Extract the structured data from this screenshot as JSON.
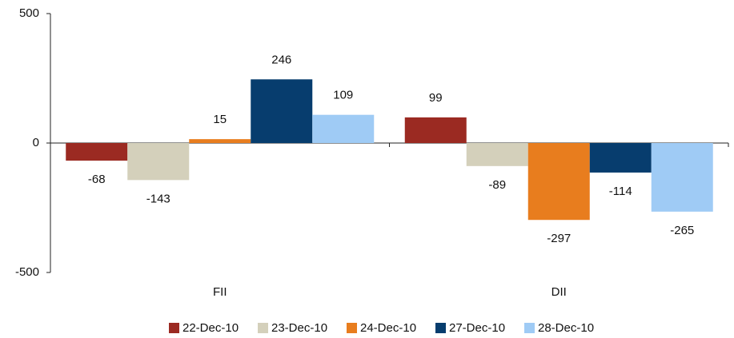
{
  "chart_data": {
    "type": "bar",
    "categories": [
      "FII",
      "DII"
    ],
    "series": [
      {
        "name": "22-Dec-10",
        "color": "#9b2a22",
        "values": [
          -68,
          99
        ]
      },
      {
        "name": "23-Dec-10",
        "color": "#d4d0bb",
        "values": [
          -143,
          -89
        ]
      },
      {
        "name": "24-Dec-10",
        "color": "#e87d1e",
        "values": [
          15,
          -297
        ]
      },
      {
        "name": "27-Dec-10",
        "color": "#073d6e",
        "values": [
          246,
          -114
        ]
      },
      {
        "name": "28-Dec-10",
        "color": "#9fcbf5",
        "values": [
          109,
          -265
        ]
      }
    ],
    "ylim": [
      -500,
      500
    ],
    "yticks": [
      -500,
      0,
      500
    ],
    "grid": false,
    "legend": "bottom"
  }
}
